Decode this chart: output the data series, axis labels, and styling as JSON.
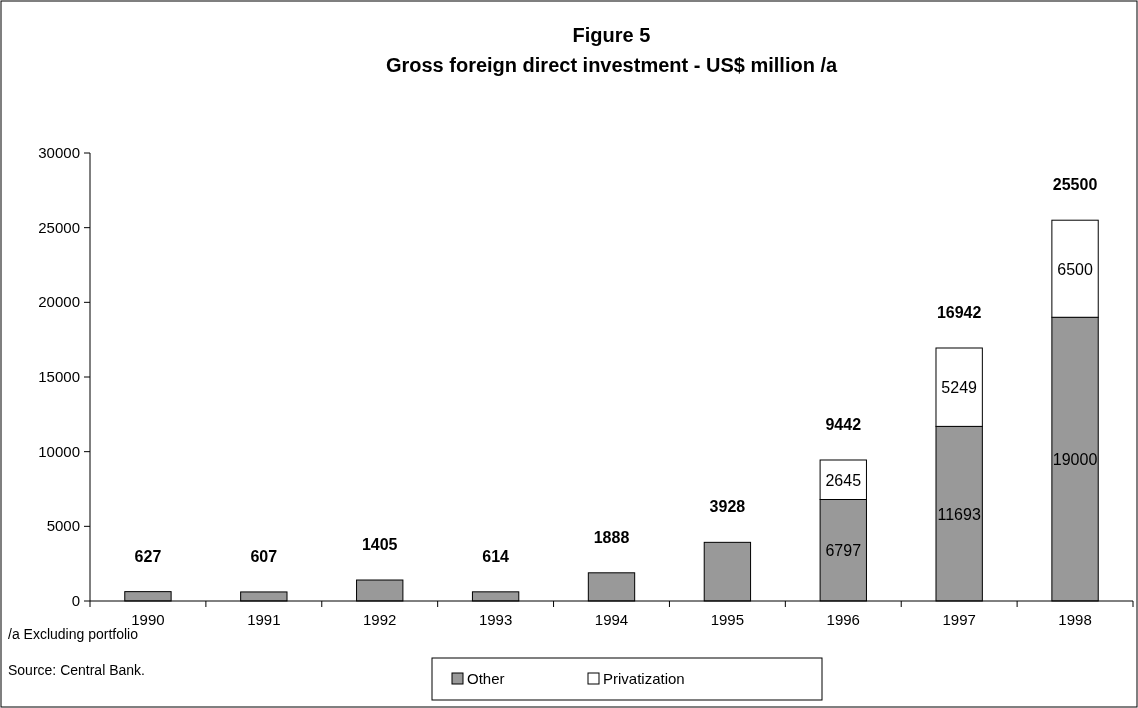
{
  "chart_data": {
    "type": "bar",
    "title": "Figure 5",
    "subtitle": "Gross foreign direct investment - US$ million /a",
    "categories": [
      "1990",
      "1991",
      "1992",
      "1993",
      "1994",
      "1995",
      "1996",
      "1997",
      "1998"
    ],
    "series": [
      {
        "name": "Other",
        "color": "#999999",
        "values": [
          627,
          607,
          1405,
          614,
          1888,
          3928,
          6797,
          11693,
          19000
        ],
        "value_labels": [
          null,
          null,
          null,
          null,
          null,
          null,
          "6797",
          "11693",
          "19000"
        ]
      },
      {
        "name": "Privatization",
        "color": "#ffffff",
        "values": [
          null,
          null,
          null,
          null,
          null,
          null,
          2645,
          5249,
          6500
        ],
        "value_labels": [
          null,
          null,
          null,
          null,
          null,
          null,
          "2645",
          "5249",
          "6500"
        ]
      }
    ],
    "stacked": true,
    "totals": [
      "627",
      "607",
      "1405",
      "614",
      "1888",
      "3928",
      "9442",
      "16942",
      "25500"
    ],
    "ylim": [
      0,
      30000
    ],
    "yticks": [
      0,
      5000,
      10000,
      15000,
      20000,
      25000,
      30000
    ],
    "grid": false,
    "legend": "bottom",
    "annotations": [
      "/a Excluding portfolio",
      "Source: Central Bank."
    ]
  }
}
